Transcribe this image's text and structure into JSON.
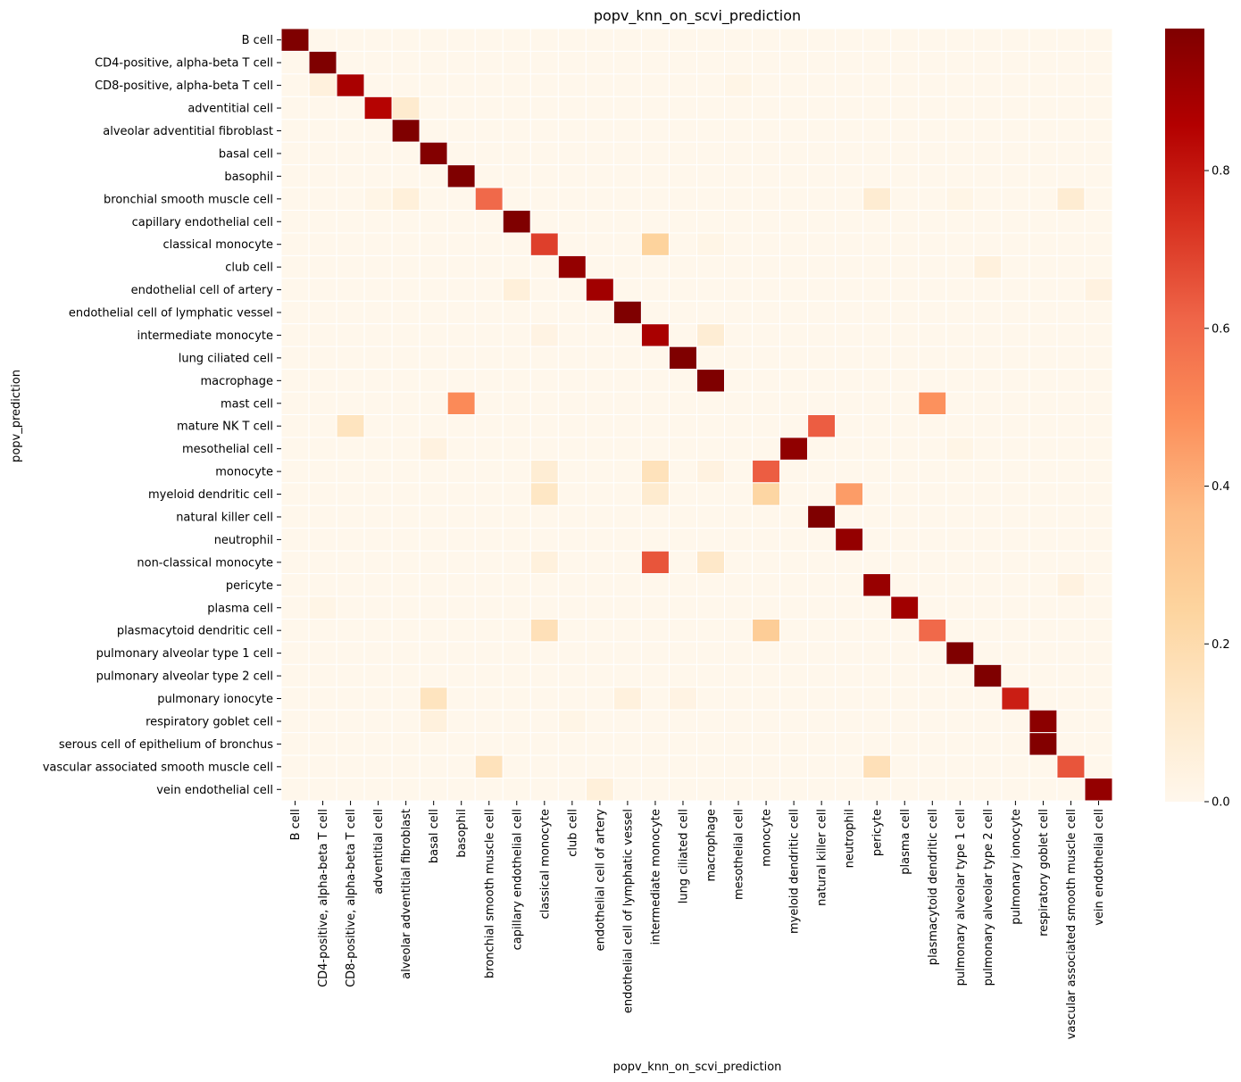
{
  "chart_data": {
    "type": "heatmap",
    "title": "popv_knn_on_scvi_prediction",
    "xlabel": "popv_knn_on_scvi_prediction",
    "ylabel": "popv_prediction",
    "rows": [
      "B cell",
      "CD4-positive, alpha-beta T cell",
      "CD8-positive, alpha-beta T cell",
      "adventitial cell",
      "alveolar adventitial fibroblast",
      "basal cell",
      "basophil",
      "bronchial smooth muscle cell",
      "capillary endothelial cell",
      "classical monocyte",
      "club cell",
      "endothelial cell of artery",
      "endothelial cell of lymphatic vessel",
      "intermediate monocyte",
      "lung ciliated cell",
      "macrophage",
      "mast cell",
      "mature NK T cell",
      "mesothelial cell",
      "monocyte",
      "myeloid dendritic cell",
      "natural killer cell",
      "neutrophil",
      "non-classical monocyte",
      "pericyte",
      "plasma cell",
      "plasmacytoid dendritic cell",
      "pulmonary alveolar type 1 cell",
      "pulmonary alveolar type 2 cell",
      "pulmonary ionocyte",
      "respiratory goblet cell",
      "serous cell of epithelium of bronchus",
      "vascular associated smooth muscle cell",
      "vein endothelial cell"
    ],
    "columns": [
      "B cell",
      "CD4-positive, alpha-beta T cell",
      "CD8-positive, alpha-beta T cell",
      "adventitial cell",
      "alveolar adventitial fibroblast",
      "basal cell",
      "basophil",
      "bronchial smooth muscle cell",
      "capillary endothelial cell",
      "classical monocyte",
      "club cell",
      "endothelial cell of artery",
      "endothelial cell of lymphatic vessel",
      "intermediate monocyte",
      "lung ciliated cell",
      "macrophage",
      "mesothelial cell",
      "monocyte",
      "myeloid dendritic cell",
      "natural killer cell",
      "neutrophil",
      "pericyte",
      "plasma cell",
      "plasmacytoid dendritic cell",
      "pulmonary alveolar type 1 cell",
      "pulmonary alveolar type 2 cell",
      "pulmonary ionocyte",
      "respiratory goblet cell",
      "vascular associated smooth muscle cell",
      "vein endothelial cell"
    ],
    "cells": [
      [
        0,
        0,
        0.98
      ],
      [
        1,
        1,
        0.98
      ],
      [
        2,
        1,
        0.05
      ],
      [
        2,
        2,
        0.88
      ],
      [
        2,
        16,
        0.02
      ],
      [
        3,
        3,
        0.85
      ],
      [
        3,
        4,
        0.1
      ],
      [
        4,
        4,
        0.98
      ],
      [
        5,
        5,
        0.97
      ],
      [
        6,
        6,
        0.98
      ],
      [
        7,
        7,
        0.6
      ],
      [
        7,
        4,
        0.06
      ],
      [
        7,
        3,
        0.02
      ],
      [
        7,
        21,
        0.09
      ],
      [
        7,
        28,
        0.09
      ],
      [
        7,
        24,
        0.02
      ],
      [
        8,
        8,
        0.98
      ],
      [
        9,
        9,
        0.7
      ],
      [
        9,
        13,
        0.25
      ],
      [
        9,
        15,
        0.02
      ],
      [
        10,
        10,
        0.93
      ],
      [
        10,
        25,
        0.05
      ],
      [
        11,
        11,
        0.9
      ],
      [
        11,
        8,
        0.06
      ],
      [
        11,
        29,
        0.04
      ],
      [
        12,
        12,
        0.98
      ],
      [
        13,
        13,
        0.88
      ],
      [
        13,
        15,
        0.08
      ],
      [
        13,
        9,
        0.03
      ],
      [
        14,
        14,
        0.98
      ],
      [
        15,
        15,
        0.98
      ],
      [
        16,
        6,
        0.5
      ],
      [
        16,
        23,
        0.48
      ],
      [
        17,
        2,
        0.15
      ],
      [
        17,
        19,
        0.63
      ],
      [
        18,
        18,
        0.94
      ],
      [
        18,
        5,
        0.04
      ],
      [
        18,
        24,
        0.02
      ],
      [
        19,
        17,
        0.63
      ],
      [
        19,
        9,
        0.08
      ],
      [
        19,
        13,
        0.16
      ],
      [
        19,
        15,
        0.04
      ],
      [
        20,
        20,
        0.45
      ],
      [
        20,
        17,
        0.23
      ],
      [
        20,
        9,
        0.13
      ],
      [
        20,
        13,
        0.1
      ],
      [
        21,
        19,
        0.98
      ],
      [
        22,
        20,
        0.93
      ],
      [
        23,
        13,
        0.65
      ],
      [
        23,
        15,
        0.12
      ],
      [
        23,
        9,
        0.05
      ],
      [
        24,
        21,
        0.92
      ],
      [
        24,
        28,
        0.04
      ],
      [
        25,
        22,
        0.9
      ],
      [
        25,
        1,
        0.02
      ],
      [
        26,
        23,
        0.6
      ],
      [
        26,
        17,
        0.28
      ],
      [
        26,
        9,
        0.17
      ],
      [
        27,
        24,
        0.98
      ],
      [
        28,
        25,
        0.98
      ],
      [
        29,
        26,
        0.78
      ],
      [
        29,
        5,
        0.15
      ],
      [
        29,
        12,
        0.05
      ],
      [
        29,
        14,
        0.03
      ],
      [
        30,
        27,
        0.95
      ],
      [
        30,
        5,
        0.05
      ],
      [
        30,
        10,
        0.02
      ],
      [
        31,
        27,
        0.97
      ],
      [
        32,
        28,
        0.65
      ],
      [
        32,
        7,
        0.16
      ],
      [
        32,
        21,
        0.17
      ],
      [
        33,
        29,
        0.93
      ],
      [
        33,
        11,
        0.06
      ]
    ],
    "colorscale": "OrRd",
    "vmin": 0,
    "vmax": 0.98,
    "colorbar_ticks": [
      "0.0",
      "0.2",
      "0.4",
      "0.6",
      "0.8"
    ]
  }
}
